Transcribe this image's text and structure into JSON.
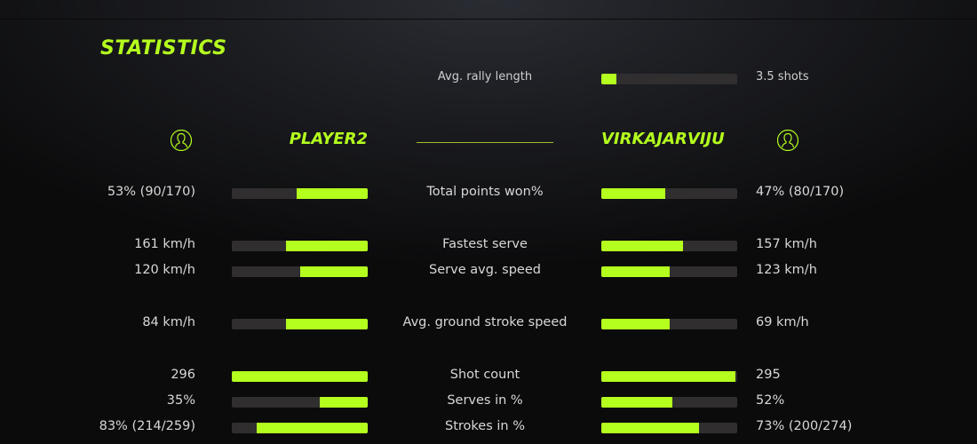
{
  "title": "STATISTICS",
  "accent": "#b4ff1e",
  "rally": {
    "label": "Avg. rally length",
    "value": "3.5 shots",
    "fill": 0.11
  },
  "players": {
    "left": {
      "name": "PLAYER2",
      "icon": "user-circle-icon"
    },
    "right": {
      "name": "VIRKAJARVIJU",
      "icon": "user-circle-icon"
    }
  },
  "stats": [
    {
      "label": "Total points won%",
      "left": "53% (90/170)",
      "right": "47% (80/170)",
      "left_fill": 0.52,
      "right_fill": 0.47
    },
    {
      "label": "Fastest serve",
      "left": "161 km/h",
      "right": "157 km/h",
      "left_fill": 0.6,
      "right_fill": 0.6
    },
    {
      "label": "Serve avg. speed",
      "left": "120 km/h",
      "right": "123 km/h",
      "left_fill": 0.5,
      "right_fill": 0.5
    },
    {
      "label": "Avg. ground stroke speed",
      "left": "84 km/h",
      "right": "69 km/h",
      "left_fill": 0.6,
      "right_fill": 0.5
    },
    {
      "label": "Shot count",
      "left": "296",
      "right": "295",
      "left_fill": 1.0,
      "right_fill": 0.99
    },
    {
      "label": "Serves in %",
      "left": "35%",
      "right": "52%",
      "left_fill": 0.35,
      "right_fill": 0.52
    },
    {
      "label": "Strokes in %",
      "left": "83% (214/259)",
      "right": "73% (200/274)",
      "left_fill": 0.82,
      "right_fill": 0.72
    }
  ]
}
